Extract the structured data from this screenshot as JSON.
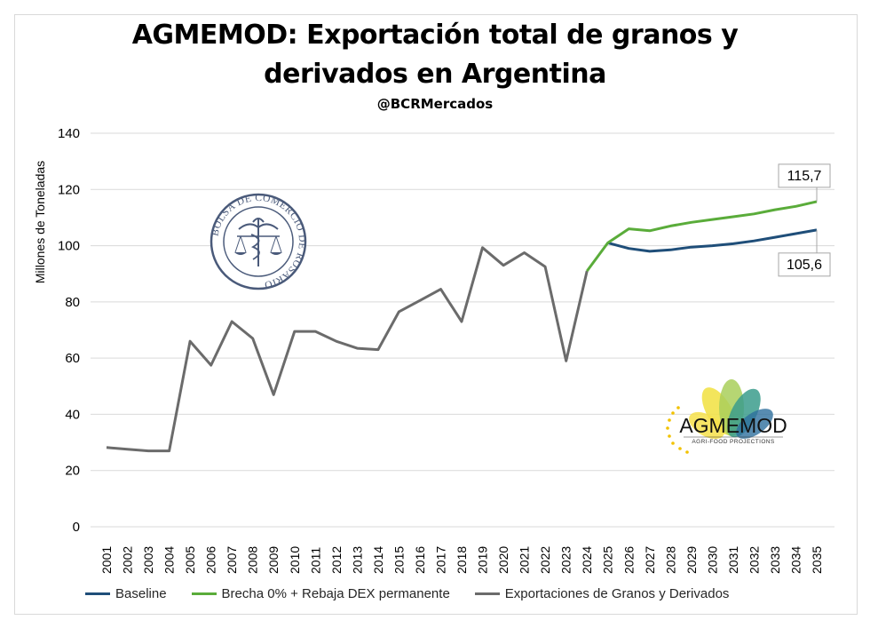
{
  "chart_data": {
    "type": "line",
    "title_line1": "AGMEMOD: Exportación total de granos y",
    "title_line2": "derivados en Argentina",
    "subtitle": "@BCRMercados",
    "xlabel": "",
    "ylabel": "Millones de Toneladas",
    "ylim": [
      0,
      140
    ],
    "yticks": [
      "0",
      "20",
      "40",
      "60",
      "80",
      "100",
      "120",
      "140"
    ],
    "x": [
      "2001",
      "2002",
      "2003",
      "2004",
      "2005",
      "2006",
      "2007",
      "2008",
      "2009",
      "2010",
      "2011",
      "2012",
      "2013",
      "2014",
      "2015",
      "2016",
      "2017",
      "2018",
      "2019",
      "2020",
      "2021",
      "2022",
      "2023",
      "2024",
      "2025",
      "2026",
      "2027",
      "2028",
      "2029",
      "2030",
      "2031",
      "2032",
      "2033",
      "2034",
      "2035"
    ],
    "series": [
      {
        "name": "Exportaciones de Granos y Derivados",
        "color": "#6b6b6b",
        "values": [
          28.2,
          27.6,
          27.0,
          27.0,
          66.0,
          57.5,
          73.0,
          67.0,
          47.0,
          69.5,
          69.5,
          66.0,
          63.5,
          63.0,
          76.5,
          80.5,
          84.5,
          73.0,
          99.3,
          93.0,
          97.5,
          92.5,
          59.0,
          91.0,
          null,
          null,
          null,
          null,
          null,
          null,
          null,
          null,
          null,
          null,
          null
        ]
      },
      {
        "name": "Brecha 0% + Rebaja DEX permanente",
        "color": "#5aac3a",
        "values": [
          null,
          null,
          null,
          null,
          null,
          null,
          null,
          null,
          null,
          null,
          null,
          null,
          null,
          null,
          null,
          null,
          null,
          null,
          null,
          null,
          null,
          null,
          null,
          91.0,
          101.0,
          106.0,
          105.3,
          107.0,
          108.3,
          109.3,
          110.3,
          111.3,
          112.8,
          114.0,
          115.7
        ]
      },
      {
        "name": "Baseline",
        "color": "#1f4e79",
        "values": [
          null,
          null,
          null,
          null,
          null,
          null,
          null,
          null,
          null,
          null,
          null,
          null,
          null,
          null,
          null,
          null,
          null,
          null,
          null,
          null,
          null,
          null,
          null,
          null,
          101.0,
          99.0,
          98.0,
          98.5,
          99.5,
          100.0,
          100.7,
          101.7,
          103.0,
          104.3,
          105.6
        ]
      }
    ],
    "legend_order": [
      "Baseline",
      "Brecha 0% + Rebaja DEX permanente",
      "Exportaciones de Granos y Derivados"
    ],
    "annotations": [
      {
        "text": "115,7",
        "series": "Brecha 0% + Rebaja DEX permanente",
        "year": "2035"
      },
      {
        "text": "105,6",
        "series": "Baseline",
        "year": "2035"
      }
    ],
    "grid": true,
    "legend_position": "bottom"
  },
  "logos": {
    "bcr_seal_text": "BOLSA DE COMERCIO DE ROSARIO",
    "agmemod_name": "AGMEMOD",
    "agmemod_tagline": "AGRI-FOOD PROJECTIONS"
  }
}
